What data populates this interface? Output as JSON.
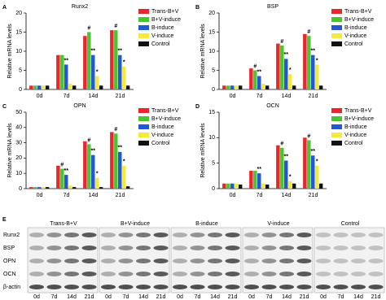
{
  "chart_data": [
    {
      "type": "bar",
      "label": "A",
      "title": "Runx2",
      "ylabel": "Relative mRNA levels",
      "categories": [
        "0d",
        "7d",
        "14d",
        "21d"
      ],
      "ylim": [
        0,
        20
      ],
      "yticks": [
        0,
        5,
        10,
        15,
        20
      ],
      "legend": "upper right",
      "series": [
        {
          "name": "Trans-B+V",
          "color": "#e8262b",
          "values": [
            1,
            9,
            14,
            15.5
          ],
          "annotations": [
            null,
            null,
            null,
            null
          ]
        },
        {
          "name": "B+V-induce",
          "color": "#4cc330",
          "values": [
            1,
            9,
            15,
            15.5
          ],
          "annotations": [
            null,
            null,
            "#",
            "#"
          ]
        },
        {
          "name": "B-induce",
          "color": "#2457d6",
          "values": [
            1,
            6.5,
            9,
            9
          ],
          "annotations": [
            null,
            "**",
            "**",
            "**"
          ]
        },
        {
          "name": "V-induce",
          "color": "#f5e93a",
          "values": [
            1,
            1.5,
            3.5,
            6
          ],
          "annotations": [
            null,
            null,
            "*",
            "*"
          ]
        },
        {
          "name": "Control",
          "color": "#111111",
          "values": [
            1,
            1,
            1,
            1
          ],
          "annotations": [
            null,
            null,
            null,
            null
          ]
        }
      ]
    },
    {
      "type": "bar",
      "label": "B",
      "title": "BSP",
      "ylabel": "Relative mRNA levels",
      "categories": [
        "0d",
        "7d",
        "14d",
        "21d"
      ],
      "ylim": [
        0,
        20
      ],
      "yticks": [
        0,
        5,
        10,
        15,
        20
      ],
      "legend": "upper right",
      "series": [
        {
          "name": "Trans-B+V",
          "color": "#e8262b",
          "values": [
            1,
            5.5,
            12,
            14.5
          ],
          "annotations": [
            null,
            null,
            null,
            null
          ]
        },
        {
          "name": "B+V-induce",
          "color": "#4cc330",
          "values": [
            1,
            5,
            11.5,
            14
          ],
          "annotations": [
            null,
            "#",
            "#",
            "#"
          ]
        },
        {
          "name": "B-induce",
          "color": "#2457d6",
          "values": [
            1,
            3.5,
            8,
            9
          ],
          "annotations": [
            null,
            "**",
            "**",
            "**"
          ]
        },
        {
          "name": "V-induce",
          "color": "#f5e93a",
          "values": [
            1,
            1.5,
            4,
            6.5
          ],
          "annotations": [
            null,
            null,
            "*",
            "*"
          ]
        },
        {
          "name": "Control",
          "color": "#111111",
          "values": [
            1,
            1,
            1,
            1
          ],
          "annotations": [
            null,
            null,
            null,
            null
          ]
        }
      ]
    },
    {
      "type": "bar",
      "label": "C",
      "title": "OPN",
      "ylabel": "Relative mRNA levels",
      "categories": [
        "0d",
        "7d",
        "14d",
        "21d"
      ],
      "ylim": [
        0,
        50
      ],
      "yticks": [
        0,
        10,
        20,
        30,
        40,
        50
      ],
      "legend": "upper right",
      "series": [
        {
          "name": "Trans-B+V",
          "color": "#e8262b",
          "values": [
            1,
            15,
            31,
            37
          ],
          "annotations": [
            null,
            null,
            null,
            null
          ]
        },
        {
          "name": "B+V-induce",
          "color": "#4cc330",
          "values": [
            1,
            13,
            29,
            36
          ],
          "annotations": [
            null,
            "#",
            "#",
            "#"
          ]
        },
        {
          "name": "B-induce",
          "color": "#2457d6",
          "values": [
            1,
            9,
            22,
            24
          ],
          "annotations": [
            null,
            "**",
            "**",
            "**"
          ]
        },
        {
          "name": "V-induce",
          "color": "#f5e93a",
          "values": [
            1,
            2,
            7,
            15
          ],
          "annotations": [
            null,
            null,
            "*",
            "*"
          ]
        },
        {
          "name": "Control",
          "color": "#111111",
          "values": [
            1,
            1,
            1,
            1.5
          ],
          "annotations": [
            null,
            null,
            null,
            null
          ]
        }
      ]
    },
    {
      "type": "bar",
      "label": "D",
      "title": "OCN",
      "ylabel": "Relative mRNA levels",
      "categories": [
        "0d",
        "7d",
        "14d",
        "21d"
      ],
      "ylim": [
        0,
        15
      ],
      "yticks": [
        0,
        5,
        10,
        15
      ],
      "legend": "upper right",
      "series": [
        {
          "name": "Trans-B+V",
          "color": "#e8262b",
          "values": [
            1,
            3.5,
            8.5,
            10
          ],
          "annotations": [
            null,
            null,
            null,
            null
          ]
        },
        {
          "name": "B+V-induce",
          "color": "#4cc330",
          "values": [
            1,
            3.5,
            8,
            9.5
          ],
          "annotations": [
            null,
            null,
            "#",
            "#"
          ]
        },
        {
          "name": "B-induce",
          "color": "#2457d6",
          "values": [
            1,
            3,
            5.5,
            6.5
          ],
          "annotations": [
            null,
            "**",
            "**",
            "**"
          ]
        },
        {
          "name": "V-induce",
          "color": "#f5e93a",
          "values": [
            1,
            1,
            1.5,
            4.5
          ],
          "annotations": [
            null,
            null,
            "*",
            "*"
          ]
        },
        {
          "name": "Control",
          "color": "#111111",
          "values": [
            0.8,
            0.8,
            1,
            1
          ],
          "annotations": [
            null,
            null,
            null,
            null
          ]
        }
      ]
    }
  ],
  "blot": {
    "label": "E",
    "rows": [
      "Runx2",
      "BSP",
      "OPN",
      "OCN",
      "β-actin"
    ],
    "groups": [
      {
        "name": "Trans-B+V",
        "days": [
          "0d",
          "7d",
          "14d",
          "21d"
        ]
      },
      {
        "name": "B+V-induce",
        "days": [
          "0d",
          "7d",
          "14d",
          "21d"
        ]
      },
      {
        "name": "B-induce",
        "days": [
          "0d",
          "7d",
          "14d",
          "21d"
        ]
      },
      {
        "name": "V-induce",
        "days": [
          "0d",
          "7d",
          "14d",
          "21d"
        ]
      },
      {
        "name": "Control",
        "days": [
          "0d",
          "7d",
          "14d",
          "21d"
        ]
      }
    ]
  }
}
